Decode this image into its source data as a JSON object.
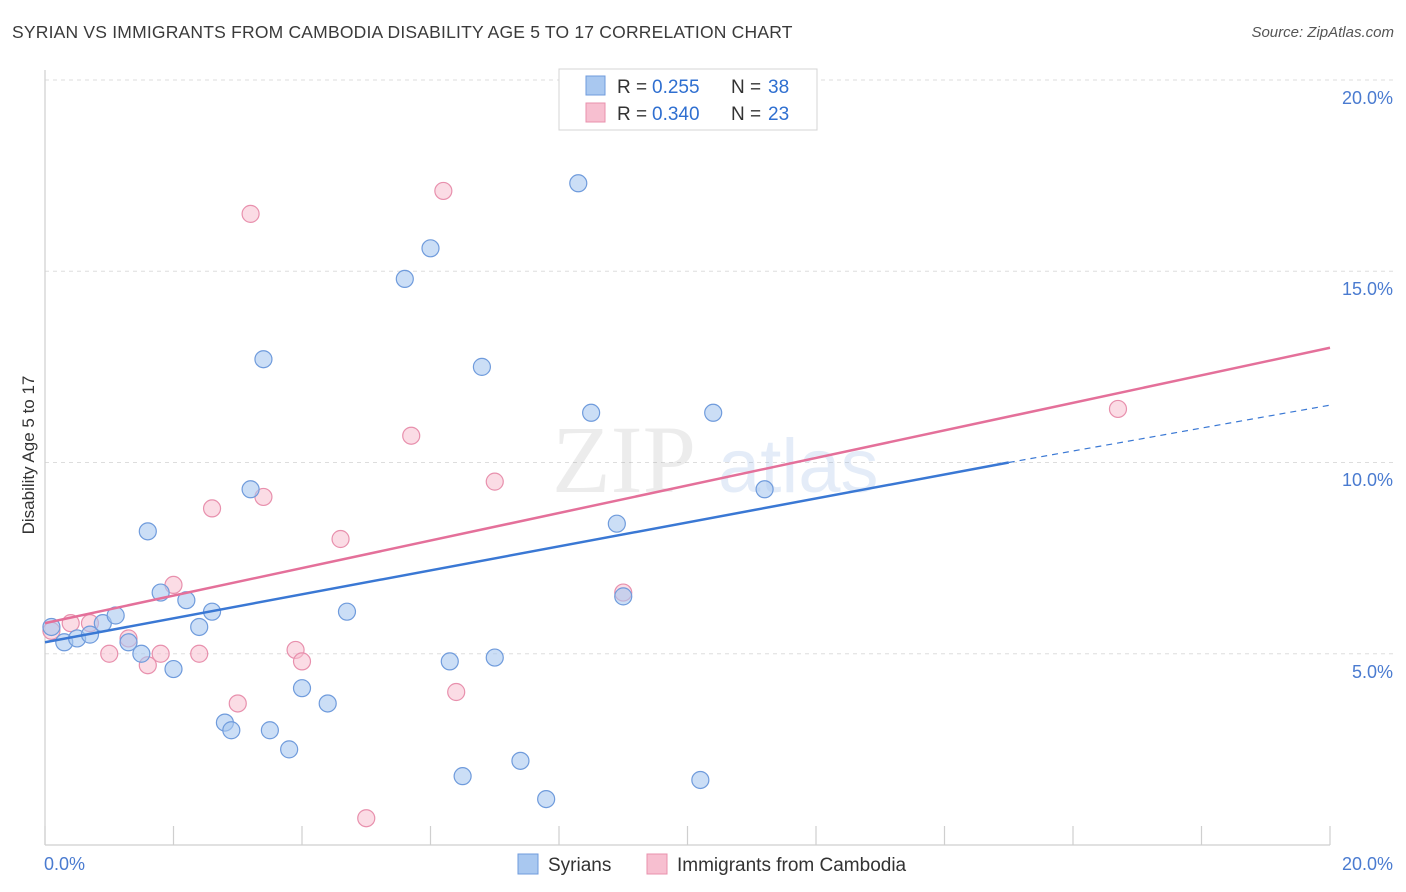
{
  "header": {
    "title": "SYRIAN VS IMMIGRANTS FROM CAMBODIA DISABILITY AGE 5 TO 17 CORRELATION CHART",
    "source": "Source: ZipAtlas.com"
  },
  "watermark": {
    "zip": "ZIP",
    "atlas": "atlas"
  },
  "stats": {
    "syrians": {
      "r_label": "R =",
      "r_value": "0.255",
      "n_label": "N =",
      "n_value": "38"
    },
    "cambodia": {
      "r_label": "R =",
      "r_value": "0.340",
      "n_label": "N =",
      "n_value": "23"
    }
  },
  "legend": {
    "syrians": "Syrians",
    "cambodia": "Immigrants from Cambodia"
  },
  "axes": {
    "ylabel": "Disability Age 5 to 17",
    "yticks": [
      "5.0%",
      "10.0%",
      "15.0%",
      "20.0%"
    ],
    "xticks": [
      "0.0%",
      "20.0%"
    ]
  },
  "colors": {
    "syrians_fill": "#a9c8f0",
    "syrians_stroke": "#6f9bdc",
    "syrians_line": "#3a78d4",
    "cambodia_fill": "#f7bfd0",
    "cambodia_stroke": "#e890ad",
    "cambodia_line": "#e4709a",
    "tick_text": "#4a7bd0",
    "grid": "#dddddd"
  },
  "chart_data": {
    "type": "scatter",
    "xlim": [
      0,
      20
    ],
    "ylim": [
      0,
      20
    ],
    "grid": true,
    "legend_position": "bottom",
    "series": [
      {
        "name": "Syrians",
        "trend": {
          "x0": 0,
          "y0": 5.3,
          "x1": 15.0,
          "y1": 10.0,
          "dashed_to_x": 20.0,
          "dashed_to_y": 11.5
        },
        "points": [
          [
            0.1,
            5.7
          ],
          [
            0.3,
            5.3
          ],
          [
            0.5,
            5.4
          ],
          [
            0.7,
            5.5
          ],
          [
            0.9,
            5.8
          ],
          [
            1.1,
            6.0
          ],
          [
            1.3,
            5.3
          ],
          [
            1.5,
            5.0
          ],
          [
            1.6,
            8.2
          ],
          [
            1.8,
            6.6
          ],
          [
            2.0,
            4.6
          ],
          [
            2.2,
            6.4
          ],
          [
            2.4,
            5.7
          ],
          [
            2.6,
            6.1
          ],
          [
            2.8,
            3.2
          ],
          [
            2.9,
            3.0
          ],
          [
            3.2,
            9.3
          ],
          [
            3.4,
            12.7
          ],
          [
            3.5,
            3.0
          ],
          [
            3.8,
            2.5
          ],
          [
            4.0,
            4.1
          ],
          [
            4.4,
            3.7
          ],
          [
            4.7,
            6.1
          ],
          [
            5.6,
            14.8
          ],
          [
            6.0,
            15.6
          ],
          [
            6.3,
            4.8
          ],
          [
            6.5,
            1.8
          ],
          [
            6.8,
            12.5
          ],
          [
            7.0,
            4.9
          ],
          [
            7.4,
            2.2
          ],
          [
            7.8,
            1.2
          ],
          [
            8.3,
            17.3
          ],
          [
            8.5,
            11.3
          ],
          [
            8.9,
            8.4
          ],
          [
            9.0,
            6.5
          ],
          [
            10.2,
            1.7
          ],
          [
            10.4,
            11.3
          ],
          [
            11.2,
            9.3
          ]
        ]
      },
      {
        "name": "Immigrants from Cambodia",
        "trend": {
          "x0": 0,
          "y0": 5.8,
          "x1": 20.0,
          "y1": 13.0
        },
        "points": [
          [
            0.1,
            5.6
          ],
          [
            0.4,
            5.8
          ],
          [
            0.7,
            5.8
          ],
          [
            1.0,
            5.0
          ],
          [
            1.3,
            5.4
          ],
          [
            1.6,
            4.7
          ],
          [
            1.8,
            5.0
          ],
          [
            2.0,
            6.8
          ],
          [
            2.4,
            5.0
          ],
          [
            2.6,
            8.8
          ],
          [
            3.0,
            3.7
          ],
          [
            3.2,
            16.5
          ],
          [
            3.4,
            9.1
          ],
          [
            3.9,
            5.1
          ],
          [
            4.0,
            4.8
          ],
          [
            4.6,
            8.0
          ],
          [
            5.0,
            0.7
          ],
          [
            5.7,
            10.7
          ],
          [
            6.2,
            17.1
          ],
          [
            6.4,
            4.0
          ],
          [
            7.0,
            9.5
          ],
          [
            9.0,
            6.6
          ],
          [
            16.7,
            11.4
          ]
        ]
      }
    ]
  }
}
